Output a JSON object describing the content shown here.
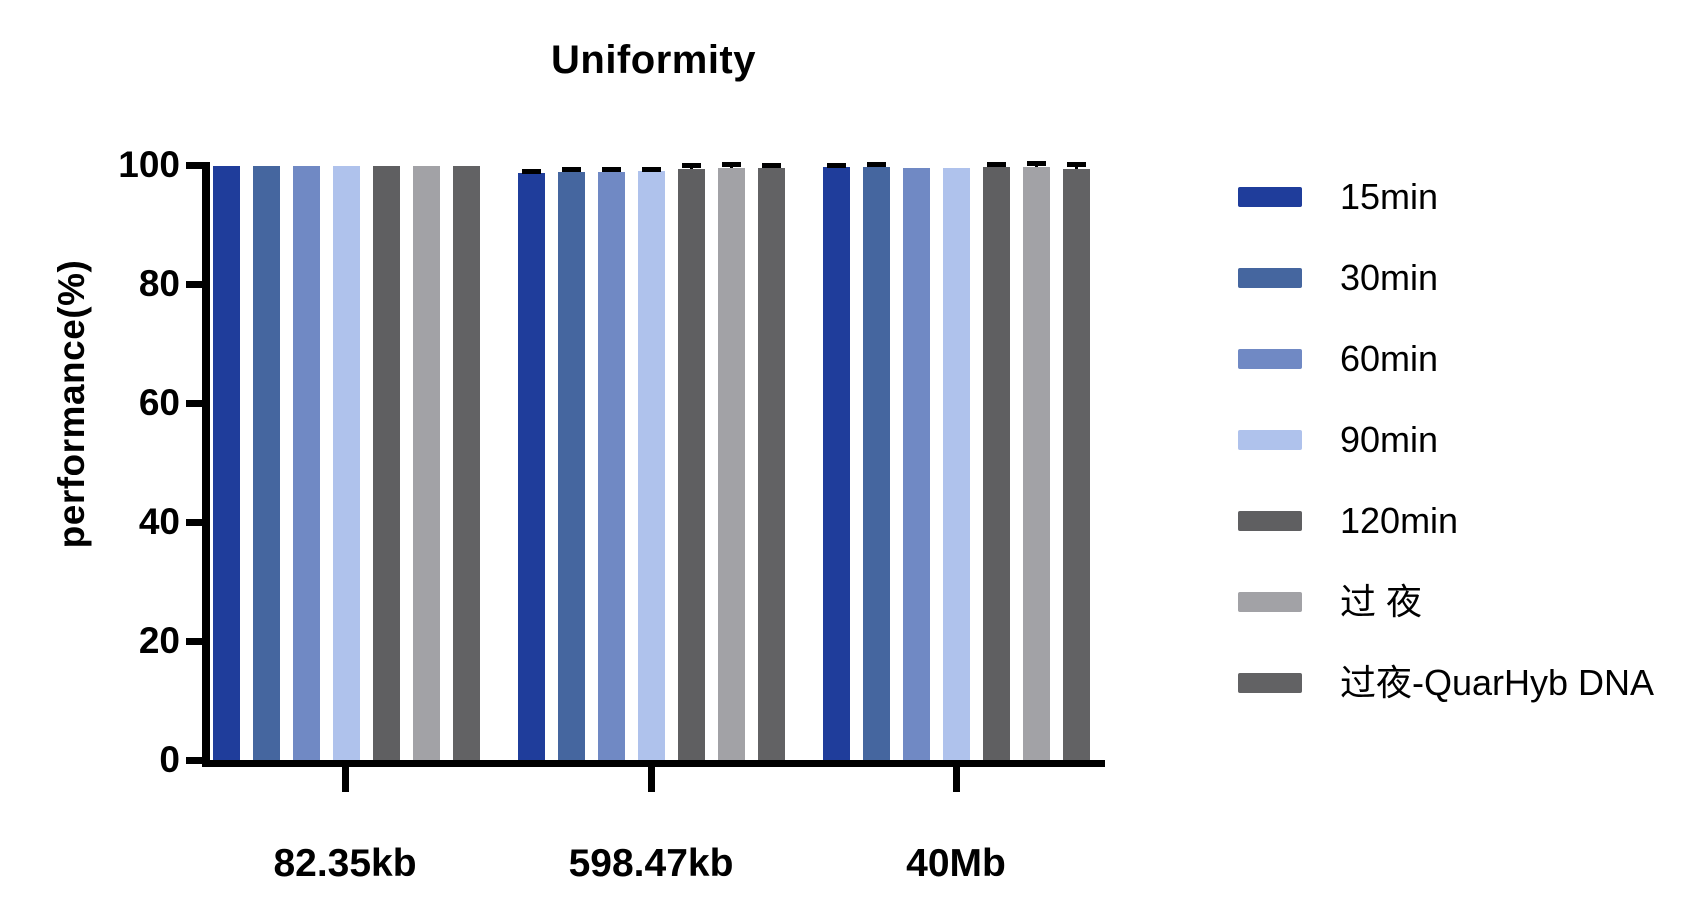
{
  "chart_data": {
    "type": "bar",
    "title": "Uniformity",
    "ylabel": "performance(%)",
    "xlabel": "",
    "categories": [
      "82.35kb",
      "598.47kb",
      "40Mb"
    ],
    "y_ticks": [
      0,
      20,
      40,
      60,
      80,
      100
    ],
    "ylim": [
      0,
      100
    ],
    "grid": false,
    "legend_position": "right",
    "error_bar_color": "#000000",
    "axis_color": "#000000",
    "series": [
      {
        "name": "15min",
        "color": "#1F3D9B",
        "values": [
          99.8,
          98.6,
          99.6
        ],
        "errors": [
          0,
          0.3,
          0.2
        ]
      },
      {
        "name": "30min",
        "color": "#45669F",
        "values": [
          99.9,
          98.9,
          99.7
        ],
        "errors": [
          0,
          0.3,
          0.3
        ]
      },
      {
        "name": "60min",
        "color": "#7089C4",
        "values": [
          99.9,
          98.8,
          99.5
        ],
        "errors": [
          0,
          0.3,
          0
        ]
      },
      {
        "name": "90min",
        "color": "#AFC2EC",
        "values": [
          99.9,
          99.0,
          99.5
        ],
        "errors": [
          0,
          0.2,
          0
        ]
      },
      {
        "name": "120min",
        "color": "#5F5F61",
        "values": [
          99.9,
          99.4,
          99.6
        ],
        "errors": [
          0,
          0.5,
          0.4
        ]
      },
      {
        "name": "过 夜",
        "color": "#A2A2A6",
        "values": [
          99.9,
          99.5,
          99.7
        ],
        "errors": [
          0,
          0.5,
          0.4
        ]
      },
      {
        "name": "过夜-QuarHyb DNA",
        "color": "#626264",
        "values": [
          99.9,
          99.5,
          99.3
        ],
        "errors": [
          0,
          0.4,
          0.7
        ]
      }
    ]
  }
}
